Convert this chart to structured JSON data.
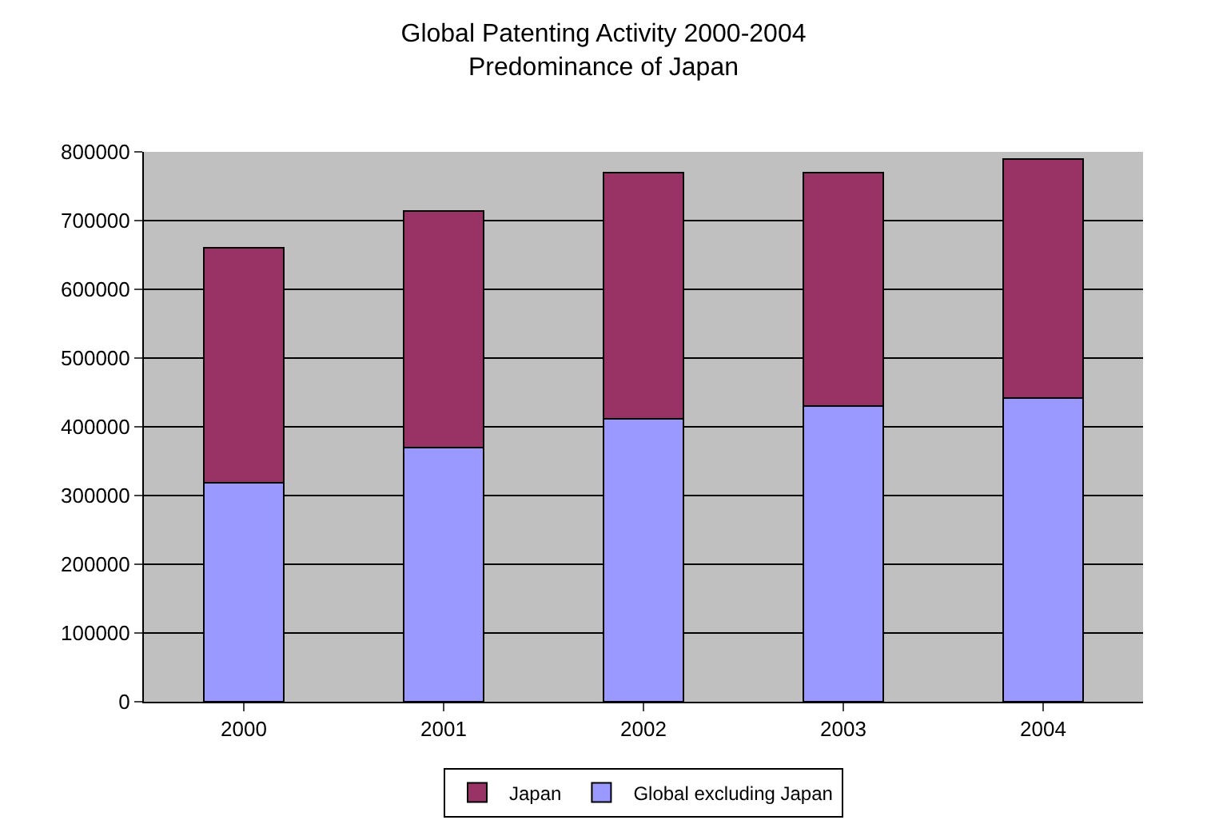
{
  "chart_data": {
    "type": "bar",
    "title": "Global Patenting Activity 2000-2004\nPredominance of Japan",
    "categories": [
      "2000",
      "2001",
      "2002",
      "2003",
      "2004"
    ],
    "stacked": true,
    "series": [
      {
        "name": "Global excluding Japan",
        "color": "#9999ff",
        "values": [
          319000,
          370000,
          412000,
          430000,
          442000
        ]
      },
      {
        "name": "Japan",
        "color": "#993366",
        "values": [
          342000,
          344000,
          358000,
          340000,
          347000
        ]
      }
    ],
    "ylim": [
      0,
      800000
    ],
    "yticks": [
      0,
      100000,
      200000,
      300000,
      400000,
      500000,
      600000,
      700000,
      800000
    ],
    "grid": "y",
    "legend": "bottom"
  }
}
